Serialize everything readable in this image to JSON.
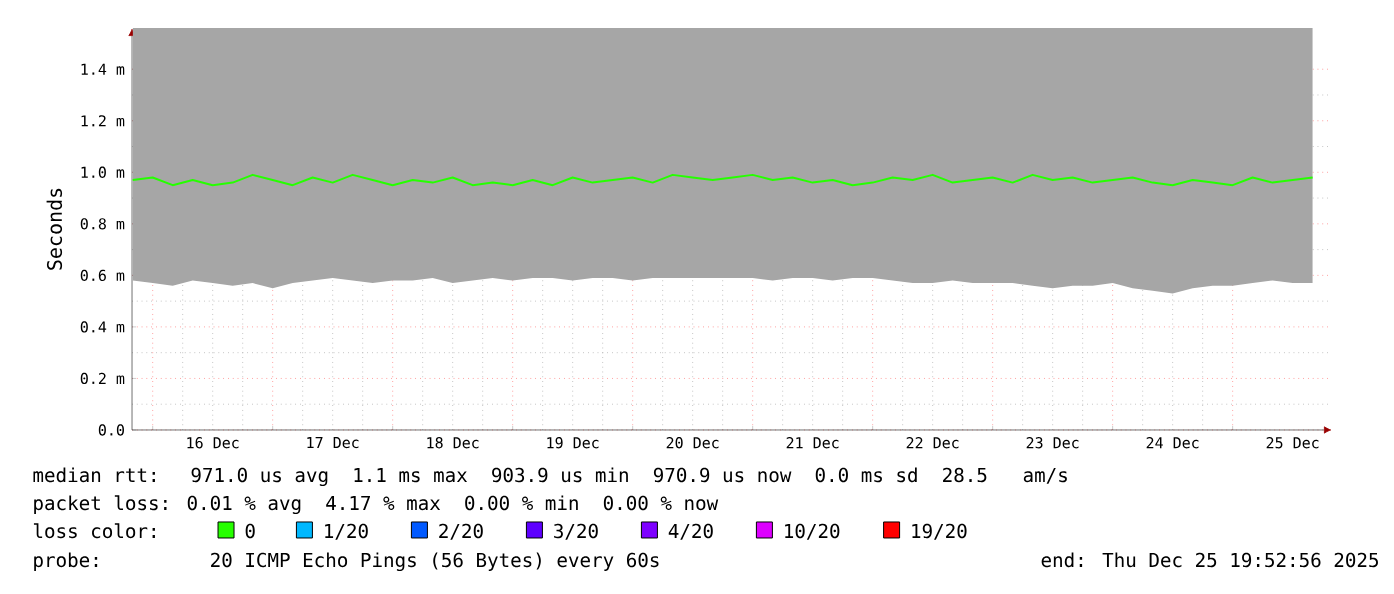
{
  "chart_data": {
    "type": "line",
    "ylabel": "Seconds",
    "xlim": [
      "2025-12-15T19:52",
      "2025-12-25T19:52"
    ],
    "xticks": [
      {
        "value": "2025-12-16T00:00",
        "label": null
      },
      {
        "value": "2025-12-16T12:00",
        "label": "16 Dec"
      },
      {
        "value": "2025-12-17T00:00",
        "label": null
      },
      {
        "value": "2025-12-17T12:00",
        "label": "17 Dec"
      },
      {
        "value": "2025-12-18T00:00",
        "label": null
      },
      {
        "value": "2025-12-18T12:00",
        "label": "18 Dec"
      },
      {
        "value": "2025-12-19T00:00",
        "label": null
      },
      {
        "value": "2025-12-19T12:00",
        "label": "19 Dec"
      },
      {
        "value": "2025-12-20T00:00",
        "label": null
      },
      {
        "value": "2025-12-20T12:00",
        "label": "20 Dec"
      },
      {
        "value": "2025-12-21T00:00",
        "label": null
      },
      {
        "value": "2025-12-21T12:00",
        "label": "21 Dec"
      },
      {
        "value": "2025-12-22T00:00",
        "label": null
      },
      {
        "value": "2025-12-22T12:00",
        "label": "22 Dec"
      },
      {
        "value": "2025-12-23T00:00",
        "label": null
      },
      {
        "value": "2025-12-23T12:00",
        "label": "23 Dec"
      },
      {
        "value": "2025-12-24T00:00",
        "label": null
      },
      {
        "value": "2025-12-24T12:00",
        "label": "24 Dec"
      },
      {
        "value": "2025-12-25T00:00",
        "label": null
      },
      {
        "value": "2025-12-25T12:00",
        "label": "25 Dec"
      }
    ],
    "ylim": [
      0,
      1.56
    ],
    "yticks": [
      {
        "value": 0,
        "label": "0.0"
      },
      {
        "value": 0.2,
        "label": "0.2 m"
      },
      {
        "value": 0.4,
        "label": "0.4 m"
      },
      {
        "value": 0.6,
        "label": "0.6 m"
      },
      {
        "value": 0.8,
        "label": "0.8 m"
      },
      {
        "value": 1.0,
        "label": "1.0 m"
      },
      {
        "value": 1.2,
        "label": "1.2 m"
      },
      {
        "value": 1.4,
        "label": "1.4 m"
      }
    ],
    "grid": true,
    "legend": "bottom",
    "x": [
      "2025-12-15T20:00",
      "2025-12-16T00:00",
      "2025-12-16T04:00",
      "2025-12-16T08:00",
      "2025-12-16T12:00",
      "2025-12-16T16:00",
      "2025-12-16T20:00",
      "2025-12-17T00:00",
      "2025-12-17T04:00",
      "2025-12-17T08:00",
      "2025-12-17T12:00",
      "2025-12-17T16:00",
      "2025-12-17T20:00",
      "2025-12-18T00:00",
      "2025-12-18T04:00",
      "2025-12-18T08:00",
      "2025-12-18T12:00",
      "2025-12-18T16:00",
      "2025-12-18T20:00",
      "2025-12-19T00:00",
      "2025-12-19T04:00",
      "2025-12-19T08:00",
      "2025-12-19T12:00",
      "2025-12-19T16:00",
      "2025-12-19T20:00",
      "2025-12-20T00:00",
      "2025-12-20T04:00",
      "2025-12-20T08:00",
      "2025-12-20T12:00",
      "2025-12-20T16:00",
      "2025-12-20T20:00",
      "2025-12-21T00:00",
      "2025-12-21T04:00",
      "2025-12-21T08:00",
      "2025-12-21T12:00",
      "2025-12-21T16:00",
      "2025-12-21T20:00",
      "2025-12-22T00:00",
      "2025-12-22T04:00",
      "2025-12-22T08:00",
      "2025-12-22T12:00",
      "2025-12-22T16:00",
      "2025-12-22T20:00",
      "2025-12-23T00:00",
      "2025-12-23T04:00",
      "2025-12-23T08:00",
      "2025-12-23T12:00",
      "2025-12-23T16:00",
      "2025-12-23T20:00",
      "2025-12-24T00:00",
      "2025-12-24T04:00",
      "2025-12-24T08:00",
      "2025-12-24T12:00",
      "2025-12-24T16:00",
      "2025-12-24T20:00",
      "2025-12-25T00:00",
      "2025-12-25T04:00",
      "2025-12-25T08:00",
      "2025-12-25T12:00",
      "2025-12-25T16:00"
    ],
    "series": [
      {
        "name": "0",
        "color": "#26ff00",
        "values": [
          0.97,
          0.98,
          0.95,
          0.97,
          0.95,
          0.96,
          0.99,
          0.97,
          0.95,
          0.98,
          0.96,
          0.99,
          0.97,
          0.95,
          0.97,
          0.96,
          0.98,
          0.95,
          0.96,
          0.95,
          0.97,
          0.95,
          0.98,
          0.96,
          0.97,
          0.98,
          0.96,
          0.99,
          0.98,
          0.97,
          0.98,
          0.99,
          0.97,
          0.98,
          0.96,
          0.97,
          0.95,
          0.96,
          0.98,
          0.97,
          0.99,
          0.96,
          0.97,
          0.98,
          0.96,
          0.99,
          0.97,
          0.98,
          0.96,
          0.97,
          0.98,
          0.96,
          0.95,
          0.97,
          0.96,
          0.95,
          0.98,
          0.96,
          0.97,
          0.98
        ],
        "lower": [
          0.58,
          0.57,
          0.56,
          0.58,
          0.57,
          0.56,
          0.57,
          0.55,
          0.57,
          0.58,
          0.59,
          0.58,
          0.57,
          0.58,
          0.58,
          0.59,
          0.57,
          0.58,
          0.59,
          0.58,
          0.59,
          0.59,
          0.58,
          0.59,
          0.59,
          0.58,
          0.59,
          0.59,
          0.59,
          0.59,
          0.59,
          0.59,
          0.58,
          0.59,
          0.59,
          0.58,
          0.59,
          0.59,
          0.58,
          0.57,
          0.57,
          0.58,
          0.57,
          0.57,
          0.57,
          0.56,
          0.55,
          0.56,
          0.56,
          0.57,
          0.55,
          0.54,
          0.53,
          0.55,
          0.56,
          0.56,
          0.57,
          0.58,
          0.57,
          0.57
        ],
        "upper": [
          1.56,
          1.56,
          1.56,
          1.56,
          1.56,
          1.56,
          1.56,
          1.56,
          1.56,
          1.56,
          1.56,
          1.56,
          1.56,
          1.56,
          1.56,
          1.56,
          1.56,
          1.56,
          1.56,
          1.56,
          1.56,
          1.56,
          1.56,
          1.56,
          1.56,
          1.56,
          1.56,
          1.56,
          1.56,
          1.56,
          1.56,
          1.56,
          1.56,
          1.56,
          1.56,
          1.56,
          1.56,
          1.56,
          1.56,
          1.56,
          1.56,
          1.56,
          1.56,
          1.56,
          1.56,
          1.56,
          1.56,
          1.56,
          1.56,
          1.56,
          1.56,
          1.56,
          1.56,
          1.56,
          1.56,
          1.56,
          1.56,
          1.56,
          1.56,
          1.56
        ]
      },
      {
        "name": "1/20",
        "color": "#00b8ff",
        "values": [
          null,
          null,
          null,
          null,
          null,
          null,
          null,
          null,
          null,
          null,
          null,
          null,
          null,
          null,
          null,
          null,
          null,
          null,
          null,
          null,
          null,
          null,
          null,
          null,
          null,
          null,
          null,
          null,
          null,
          null,
          null,
          null,
          null,
          null,
          null,
          null,
          null,
          null,
          null,
          null,
          null,
          null,
          null,
          null,
          null,
          null,
          null,
          null,
          null,
          null,
          null,
          null,
          null,
          null,
          null,
          null,
          null,
          null,
          null,
          null
        ]
      },
      {
        "name": "2/20",
        "color": "#0059ff",
        "values": [
          null,
          null,
          null,
          null,
          null,
          null,
          null,
          null,
          null,
          null,
          null,
          null,
          null,
          null,
          null,
          null,
          null,
          null,
          null,
          null,
          null,
          null,
          null,
          null,
          null,
          null,
          null,
          null,
          null,
          null,
          null,
          null,
          null,
          null,
          null,
          null,
          null,
          null,
          null,
          null,
          null,
          null,
          null,
          null,
          null,
          null,
          null,
          null,
          null,
          null,
          null,
          null,
          null,
          null,
          null,
          null,
          null,
          null,
          null,
          null
        ]
      },
      {
        "name": "3/20",
        "color": "#5e00ff",
        "values": [
          null,
          null,
          null,
          null,
          null,
          null,
          null,
          null,
          null,
          null,
          null,
          null,
          null,
          null,
          null,
          null,
          null,
          null,
          null,
          null,
          null,
          null,
          null,
          null,
          null,
          null,
          null,
          null,
          null,
          null,
          null,
          null,
          null,
          null,
          null,
          null,
          null,
          null,
          null,
          null,
          null,
          null,
          null,
          null,
          null,
          null,
          null,
          null,
          null,
          null,
          null,
          null,
          null,
          null,
          null,
          null,
          null,
          null,
          null,
          null
        ]
      },
      {
        "name": "4/20",
        "color": "#7e00ff",
        "values": [
          null,
          null,
          null,
          null,
          null,
          null,
          null,
          null,
          null,
          null,
          null,
          null,
          null,
          null,
          null,
          null,
          null,
          null,
          null,
          null,
          null,
          null,
          null,
          null,
          null,
          null,
          null,
          null,
          null,
          null,
          null,
          null,
          null,
          null,
          null,
          null,
          null,
          null,
          null,
          null,
          null,
          null,
          null,
          null,
          null,
          null,
          null,
          null,
          null,
          null,
          null,
          null,
          null,
          null,
          null,
          null,
          null,
          null,
          null,
          null
        ]
      },
      {
        "name": "10/20",
        "color": "#dd00ff",
        "values": [
          null,
          null,
          null,
          null,
          null,
          null,
          null,
          null,
          null,
          null,
          null,
          null,
          null,
          null,
          null,
          null,
          null,
          null,
          null,
          null,
          null,
          null,
          null,
          null,
          null,
          null,
          null,
          null,
          null,
          null,
          null,
          null,
          null,
          null,
          null,
          null,
          null,
          null,
          null,
          null,
          null,
          null,
          null,
          null,
          null,
          null,
          null,
          null,
          null,
          null,
          null,
          null,
          null,
          null,
          null,
          null,
          null,
          null,
          null,
          null
        ]
      },
      {
        "name": "19/20",
        "color": "#ff0000",
        "values": [
          null,
          null,
          null,
          null,
          null,
          null,
          null,
          null,
          null,
          null,
          null,
          null,
          null,
          null,
          null,
          null,
          null,
          null,
          null,
          null,
          null,
          null,
          null,
          null,
          null,
          null,
          null,
          null,
          null,
          null,
          null,
          null,
          null,
          null,
          null,
          null,
          null,
          null,
          null,
          null,
          null,
          null,
          null,
          null,
          null,
          null,
          null,
          null,
          null,
          null,
          null,
          null,
          null,
          null,
          null,
          null,
          null,
          null,
          null,
          null
        ]
      }
    ],
    "annotations": [
      "median rtt:  971.0 us avg  1.1 ms max  903.9 us min  970.9 us now  0.0 ms sd  28.5   am/s",
      "packet loss: 0.01 % avg  4.17 % max  0.00 % min  0.00 % now",
      "loss color:",
      "probe:       20 ICMP Echo Pings (56 Bytes) every 60s",
      "end: Thu Dec 25 19:52:56 2025"
    ]
  }
}
